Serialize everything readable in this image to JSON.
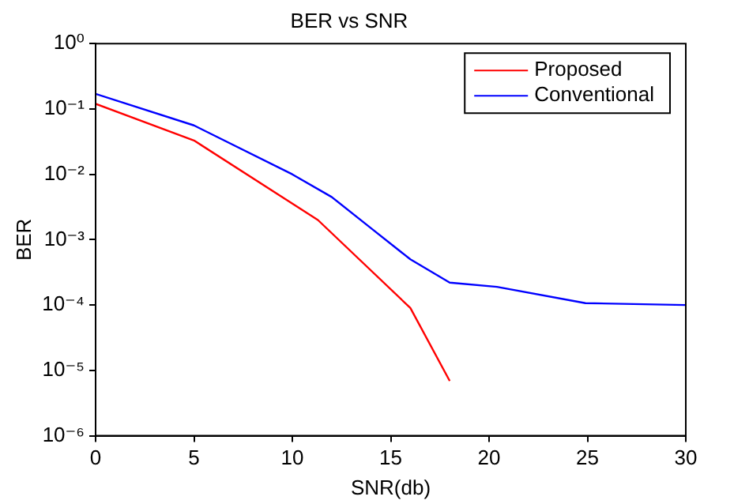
{
  "chart_data": {
    "type": "line",
    "title": "BER vs SNR",
    "xlabel": "SNR(db)",
    "ylabel": "BER",
    "log": "y",
    "grid": false,
    "legend": "top right",
    "marker": "none",
    "line_style": "solid",
    "xlim": [
      0,
      30
    ],
    "xticks": [
      0,
      5,
      10,
      15,
      20,
      25,
      30
    ],
    "ylim": [
      1e-06,
      1
    ],
    "yticks": [
      {
        "value": 1e-06,
        "label": "10⁻⁶"
      },
      {
        "value": 1e-05,
        "label": "10⁻⁵"
      },
      {
        "value": 0.0001,
        "label": "10⁻⁴"
      },
      {
        "value": 0.001,
        "label": "10⁻³"
      },
      {
        "value": 0.01,
        "label": "10⁻²"
      },
      {
        "value": 0.1,
        "label": "10⁻¹"
      },
      {
        "value": 1,
        "label": "10⁰"
      }
    ],
    "series": [
      {
        "name": "Proposed",
        "color": "#ff0000",
        "x": [
          0,
          5,
          11.3,
          16,
          18
        ],
        "values": [
          0.12,
          0.033,
          0.002,
          9e-05,
          6.9e-06
        ]
      },
      {
        "name": "Conventional",
        "color": "#0000ff",
        "x": [
          0,
          5,
          10,
          12,
          14,
          16,
          18,
          20.4,
          24.9,
          30
        ],
        "values": [
          0.17,
          0.056,
          0.01,
          0.0045,
          0.0015,
          0.0005,
          0.00022,
          0.00019,
          0.000107,
          0.0001
        ]
      }
    ]
  }
}
